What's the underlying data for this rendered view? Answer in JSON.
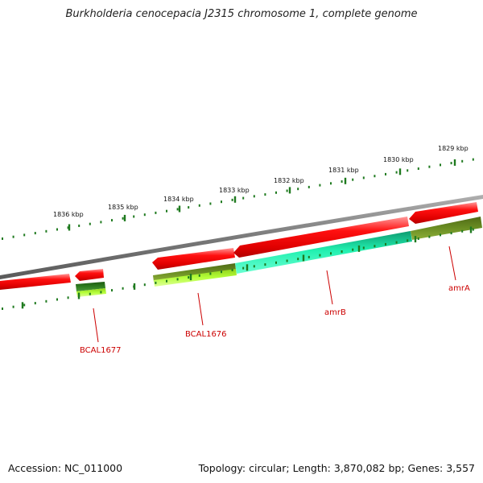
{
  "title": "Burkholderia cenocepacia J2315 chromosome 1, complete genome",
  "footer": {
    "accession": "Accession: NC_011000",
    "topology": "Topology: circular; Length: 3,870,082 bp; Genes: 3,557"
  },
  "scale": {
    "unit": "kbp",
    "ticks": [
      {
        "label": "1836 kbp"
      },
      {
        "label": "1835 kbp"
      },
      {
        "label": "1834 kbp"
      },
      {
        "label": "1833 kbp"
      },
      {
        "label": "1832 kbp"
      },
      {
        "label": "1831 kbp"
      },
      {
        "label": "1830 kbp"
      },
      {
        "label": "1829 kbp"
      }
    ]
  },
  "gene_labels": [
    {
      "name": "BCAL1677"
    },
    {
      "name": "BCAL1676"
    },
    {
      "name": "amrB"
    },
    {
      "name": "amrA"
    }
  ],
  "colors": {
    "backbone": "#7f7f7f",
    "gene": "#ee0000",
    "tick": "#1f7a1f",
    "label": "#cc0000",
    "feature_dark_green": "#2e7d1f",
    "feature_olive": "#6b8e23",
    "feature_lime": "#b6ff3b",
    "feature_cyan": "#22f0b0"
  }
}
